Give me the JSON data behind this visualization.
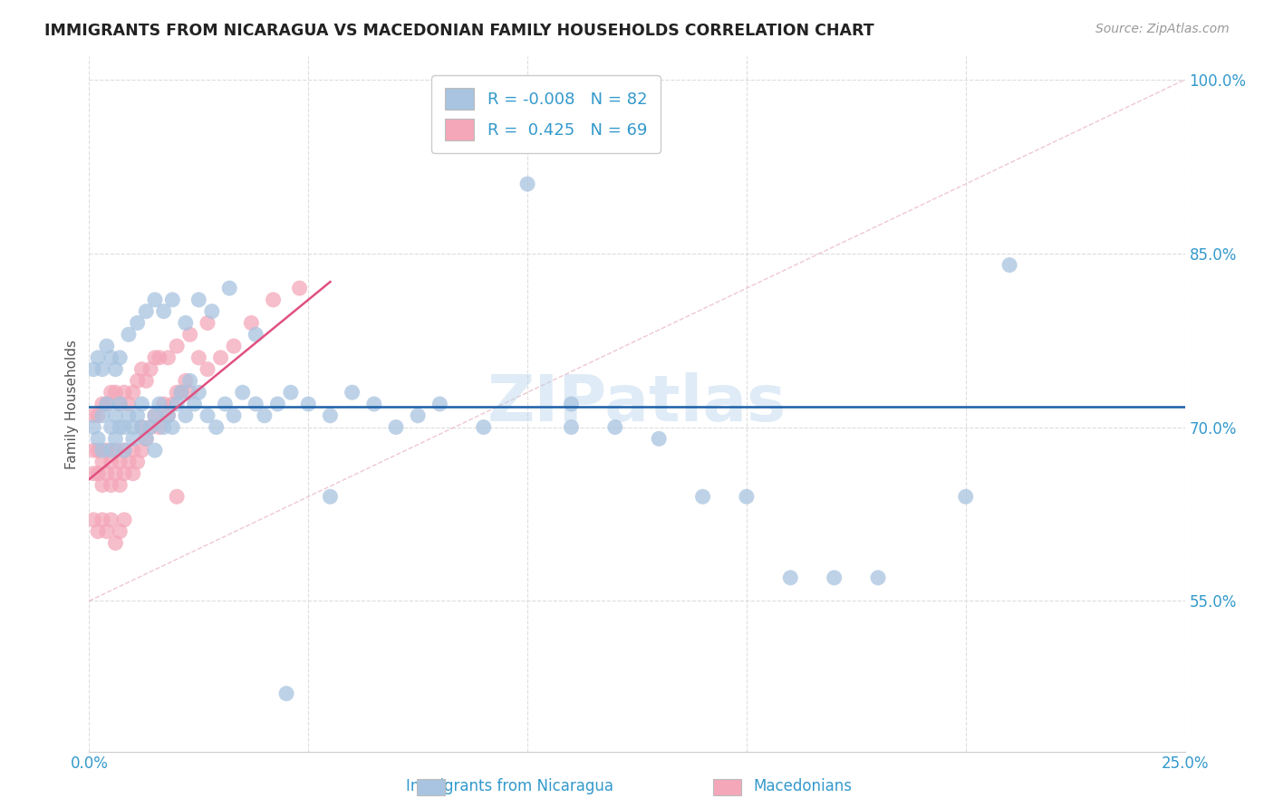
{
  "title": "IMMIGRANTS FROM NICARAGUA VS MACEDONIAN FAMILY HOUSEHOLDS CORRELATION CHART",
  "source": "Source: ZipAtlas.com",
  "ylabel": "Family Households",
  "xlabel_blue": "Immigrants from Nicaragua",
  "xlabel_pink": "Macedonians",
  "xlim": [
    0.0,
    0.25
  ],
  "ylim": [
    0.42,
    1.02
  ],
  "yticks": [
    0.55,
    0.7,
    0.85,
    1.0
  ],
  "yticklabels": [
    "55.0%",
    "70.0%",
    "85.0%",
    "100.0%"
  ],
  "xtick_vals": [
    0.0,
    0.05,
    0.1,
    0.15,
    0.2,
    0.25
  ],
  "R_blue": -0.008,
  "N_blue": 82,
  "R_pink": 0.425,
  "N_pink": 69,
  "blue_color": "#a8c4e0",
  "pink_color": "#f4a7b9",
  "trendline_blue_color": "#1a5fa8",
  "trendline_pink_color": "#e05080",
  "trendline_ref_color": "#e8b0c0",
  "watermark": "ZIPatlas",
  "title_color": "#222222",
  "source_color": "#999999",
  "tick_color": "#3399cc",
  "ylabel_color": "#555555",
  "legend_text_color": "#3399cc",
  "blue_x": [
    0.001,
    0.002,
    0.003,
    0.003,
    0.004,
    0.005,
    0.005,
    0.006,
    0.006,
    0.007,
    0.007,
    0.008,
    0.008,
    0.009,
    0.01,
    0.01,
    0.011,
    0.012,
    0.012,
    0.013,
    0.014,
    0.015,
    0.015,
    0.016,
    0.017,
    0.018,
    0.019,
    0.02,
    0.021,
    0.022,
    0.023,
    0.024,
    0.025,
    0.027,
    0.029,
    0.031,
    0.033,
    0.035,
    0.038,
    0.04,
    0.043,
    0.046,
    0.05,
    0.055,
    0.06,
    0.065,
    0.07,
    0.075,
    0.08,
    0.09,
    0.1,
    0.11,
    0.12,
    0.13,
    0.14,
    0.15,
    0.16,
    0.17,
    0.18,
    0.21,
    0.001,
    0.002,
    0.003,
    0.004,
    0.005,
    0.006,
    0.007,
    0.009,
    0.011,
    0.013,
    0.015,
    0.017,
    0.019,
    0.022,
    0.025,
    0.028,
    0.032,
    0.038,
    0.045,
    0.055,
    0.11,
    0.2
  ],
  "blue_y": [
    0.7,
    0.69,
    0.68,
    0.71,
    0.72,
    0.7,
    0.68,
    0.69,
    0.71,
    0.7,
    0.72,
    0.68,
    0.7,
    0.71,
    0.7,
    0.69,
    0.71,
    0.7,
    0.72,
    0.69,
    0.7,
    0.71,
    0.68,
    0.72,
    0.7,
    0.71,
    0.7,
    0.72,
    0.73,
    0.71,
    0.74,
    0.72,
    0.73,
    0.71,
    0.7,
    0.72,
    0.71,
    0.73,
    0.72,
    0.71,
    0.72,
    0.73,
    0.72,
    0.71,
    0.73,
    0.72,
    0.7,
    0.71,
    0.72,
    0.7,
    0.91,
    0.72,
    0.7,
    0.69,
    0.64,
    0.64,
    0.57,
    0.57,
    0.57,
    0.84,
    0.75,
    0.76,
    0.75,
    0.77,
    0.76,
    0.75,
    0.76,
    0.78,
    0.79,
    0.8,
    0.81,
    0.8,
    0.81,
    0.79,
    0.81,
    0.8,
    0.82,
    0.78,
    0.47,
    0.64,
    0.7,
    0.64
  ],
  "pink_x": [
    0.001,
    0.001,
    0.002,
    0.002,
    0.003,
    0.003,
    0.004,
    0.004,
    0.005,
    0.005,
    0.006,
    0.006,
    0.007,
    0.007,
    0.008,
    0.008,
    0.009,
    0.01,
    0.01,
    0.011,
    0.012,
    0.012,
    0.013,
    0.014,
    0.015,
    0.016,
    0.017,
    0.018,
    0.019,
    0.02,
    0.021,
    0.022,
    0.023,
    0.025,
    0.027,
    0.03,
    0.033,
    0.037,
    0.042,
    0.048,
    0.001,
    0.002,
    0.003,
    0.004,
    0.005,
    0.006,
    0.007,
    0.008,
    0.009,
    0.01,
    0.011,
    0.012,
    0.013,
    0.014,
    0.015,
    0.016,
    0.018,
    0.02,
    0.023,
    0.027,
    0.001,
    0.002,
    0.003,
    0.004,
    0.005,
    0.006,
    0.007,
    0.008,
    0.02
  ],
  "pink_y": [
    0.68,
    0.66,
    0.68,
    0.66,
    0.67,
    0.65,
    0.66,
    0.68,
    0.65,
    0.67,
    0.66,
    0.68,
    0.67,
    0.65,
    0.66,
    0.68,
    0.67,
    0.68,
    0.66,
    0.67,
    0.68,
    0.7,
    0.69,
    0.7,
    0.71,
    0.7,
    0.72,
    0.71,
    0.72,
    0.73,
    0.73,
    0.74,
    0.73,
    0.76,
    0.75,
    0.76,
    0.77,
    0.79,
    0.81,
    0.82,
    0.71,
    0.71,
    0.72,
    0.72,
    0.73,
    0.73,
    0.72,
    0.73,
    0.72,
    0.73,
    0.74,
    0.75,
    0.74,
    0.75,
    0.76,
    0.76,
    0.76,
    0.77,
    0.78,
    0.79,
    0.62,
    0.61,
    0.62,
    0.61,
    0.62,
    0.6,
    0.61,
    0.62,
    0.64
  ]
}
